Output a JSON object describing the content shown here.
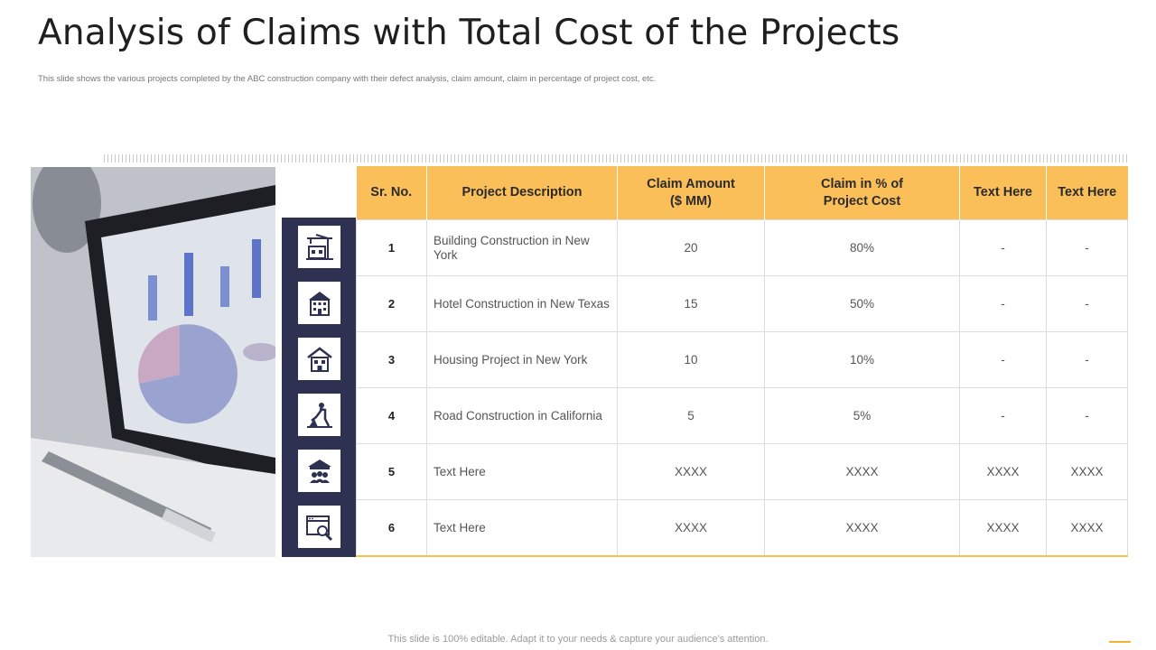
{
  "slide": {
    "title": "Analysis of Claims with Total Cost of the Projects",
    "subtitle": "This slide shows the various projects completed by the ABC construction company with their defect analysis, claim amount,  claim in percentage of project cost, etc.",
    "footer": "This slide is 100% editable. Adapt it to your needs & capture your audience’s attention."
  },
  "colors": {
    "header_fill": "#fbbf5a",
    "icon_column": "#2e3152",
    "accent": "#f5b335"
  },
  "table": {
    "headers": {
      "sr": "Sr. No.",
      "desc": "Project Description",
      "claim_amount": "Claim Amount\n($ MM)",
      "claim_pct": "Claim in % of\nProject Cost",
      "text1": "Text Here",
      "text2": "Text Here"
    },
    "rows": [
      {
        "sr": "1",
        "desc": "Building Construction in New York",
        "amount": "20",
        "pct": "80%",
        "t1": "-",
        "t2": "-",
        "icon": "crane-building-icon"
      },
      {
        "sr": "2",
        "desc": "Hotel Construction in New Texas",
        "amount": "15",
        "pct": "50%",
        "t1": "-",
        "t2": "-",
        "icon": "hotel-icon"
      },
      {
        "sr": "3",
        "desc": "Housing Project in New York",
        "amount": "10",
        "pct": "10%",
        "t1": "-",
        "t2": "-",
        "icon": "house-icon"
      },
      {
        "sr": "4",
        "desc": "Road Construction in California",
        "amount": "5",
        "pct": "5%",
        "t1": "-",
        "t2": "-",
        "icon": "road-worker-icon"
      },
      {
        "sr": "5",
        "desc": "Text Here",
        "amount": "XXXX",
        "pct": "XXXX",
        "t1": "XXXX",
        "t2": "XXXX",
        "icon": "museum-people-icon"
      },
      {
        "sr": "6",
        "desc": "Text Here",
        "amount": "XXXX",
        "pct": "XXXX",
        "t1": "XXXX",
        "t2": "XXXX",
        "icon": "web-search-icon"
      }
    ]
  }
}
